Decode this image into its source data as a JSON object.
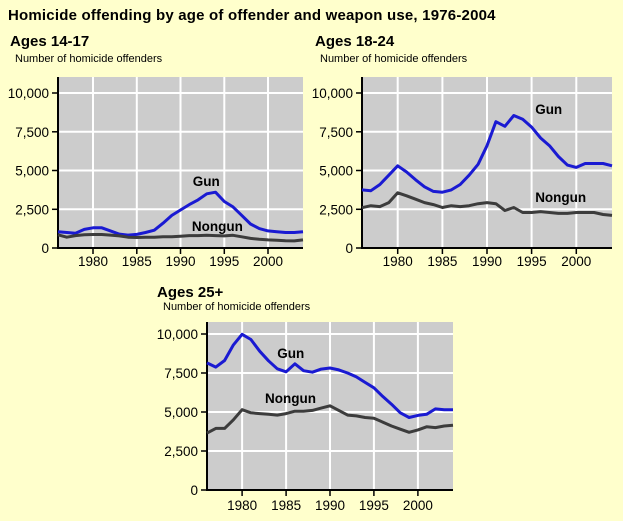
{
  "page_title": "Homicide offending by age of offender and weapon use, 1976-2004",
  "colors": {
    "background": "#FFFFCC",
    "plot_bg": "#CCCCCC",
    "grid": "#FFFFFF",
    "axis": "#000000",
    "text": "#000000",
    "gun": "#1A1AD2",
    "nongun": "#3C3C3C"
  },
  "chart_data": [
    {
      "type": "line",
      "title": "Ages 14-17",
      "ylabel": "Number of homicide offenders",
      "x_start": 1976,
      "x_end": 2004,
      "ylim": [
        0,
        11000
      ],
      "grid": true,
      "yticks": [
        0,
        2500,
        5000,
        7500,
        10000
      ],
      "ytick_labels": [
        "0",
        "2,500",
        "5,000",
        "7,500",
        "10,000"
      ],
      "xticks": [
        1980,
        1985,
        1990,
        1995,
        2000
      ],
      "series": [
        {
          "name": "Gun",
          "color": "#1A1AD2",
          "label": {
            "year": 1991.4,
            "value": 4000
          },
          "values": [
            1050,
            1000,
            950,
            1200,
            1300,
            1300,
            1100,
            900,
            830,
            880,
            1000,
            1150,
            1600,
            2100,
            2450,
            2800,
            3100,
            3500,
            3600,
            3000,
            2650,
            2100,
            1550,
            1250,
            1100,
            1050,
            1000,
            1000,
            1050
          ]
        },
        {
          "name": "Nongun",
          "color": "#3C3C3C",
          "label": {
            "year": 1991.3,
            "value": 1100
          },
          "values": [
            850,
            700,
            800,
            850,
            870,
            870,
            830,
            780,
            700,
            680,
            700,
            700,
            730,
            730,
            760,
            800,
            800,
            820,
            800,
            780,
            820,
            720,
            620,
            560,
            520,
            500,
            470,
            460,
            520
          ]
        }
      ]
    },
    {
      "type": "line",
      "title": "Ages 18-24",
      "ylabel": "Number of homicide offenders",
      "x_start": 1976,
      "x_end": 2004,
      "ylim": [
        0,
        11000
      ],
      "grid": true,
      "yticks": [
        0,
        2500,
        5000,
        7500,
        10000
      ],
      "ytick_labels": [
        "0",
        "2,500",
        "5,000",
        "7,500",
        "10,000"
      ],
      "xticks": [
        1980,
        1985,
        1990,
        1995,
        2000
      ],
      "series": [
        {
          "name": "Gun",
          "color": "#1A1AD2",
          "label": {
            "year": 1995.4,
            "value": 8650
          },
          "values": [
            3750,
            3700,
            4100,
            4700,
            5300,
            4900,
            4400,
            3950,
            3650,
            3600,
            3750,
            4100,
            4700,
            5400,
            6600,
            8150,
            7850,
            8550,
            8300,
            7800,
            7100,
            6600,
            5900,
            5350,
            5200,
            5450,
            5450,
            5450,
            5300
          ]
        },
        {
          "name": "Nongun",
          "color": "#3C3C3C",
          "label": {
            "year": 1995.4,
            "value": 2970
          },
          "values": [
            2600,
            2730,
            2670,
            2930,
            3560,
            3370,
            3150,
            2930,
            2800,
            2610,
            2730,
            2670,
            2730,
            2860,
            2930,
            2860,
            2420,
            2610,
            2290,
            2290,
            2350,
            2290,
            2230,
            2230,
            2290,
            2290,
            2290,
            2160,
            2100
          ]
        }
      ]
    },
    {
      "type": "line",
      "title": "Ages 25+",
      "ylabel": "Number of homicide offenders",
      "x_start": 1976,
      "x_end": 2004,
      "ylim": [
        0,
        11000
      ],
      "grid": true,
      "yticks": [
        0,
        2500,
        5000,
        7500,
        10000
      ],
      "ytick_labels": [
        "0",
        "2,500",
        "5,000",
        "7,500",
        "10,000"
      ],
      "xticks": [
        1980,
        1985,
        1990,
        1995,
        2000
      ],
      "series": [
        {
          "name": "Gun",
          "color": "#1A1AD2",
          "label": {
            "year": 1984.0,
            "value": 8460
          },
          "values": [
            8150,
            7880,
            8300,
            9300,
            9980,
            9650,
            8900,
            8280,
            7770,
            7580,
            8090,
            7650,
            7550,
            7750,
            7820,
            7700,
            7500,
            7250,
            6900,
            6550,
            6000,
            5500,
            4950,
            4650,
            4780,
            4850,
            5200,
            5150,
            5150
          ]
        },
        {
          "name": "Nongun",
          "color": "#3C3C3C",
          "label": {
            "year": 1982.6,
            "value": 5580
          },
          "values": [
            3650,
            3950,
            3950,
            4500,
            5150,
            4950,
            4900,
            4850,
            4800,
            4900,
            5050,
            5050,
            5100,
            5250,
            5400,
            5100,
            4800,
            4750,
            4650,
            4600,
            4350,
            4100,
            3900,
            3700,
            3850,
            4050,
            4000,
            4100,
            4150
          ]
        }
      ]
    }
  ]
}
